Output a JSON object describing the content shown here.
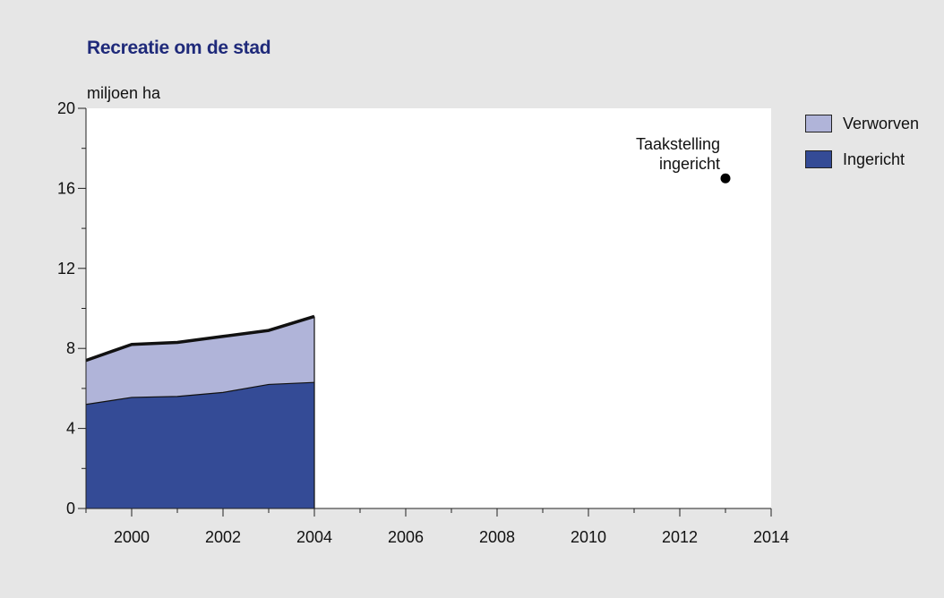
{
  "chart_data": {
    "type": "area",
    "title": "Recreatie om de stad",
    "ylabel": "miljoen ha",
    "xlabel": "",
    "xlim": [
      1999,
      2014
    ],
    "ylim": [
      0,
      20
    ],
    "x_ticks": [
      2000,
      2002,
      2004,
      2006,
      2008,
      2010,
      2012,
      2014
    ],
    "y_ticks": [
      0,
      4,
      8,
      12,
      16,
      20
    ],
    "x": [
      1999,
      2000,
      2001,
      2002,
      2003,
      2004
    ],
    "stacked": true,
    "series": [
      {
        "name": "Ingericht",
        "color": "#344b96",
        "values": [
          5.2,
          5.55,
          5.6,
          5.8,
          6.2,
          6.3
        ]
      },
      {
        "name": "Verworven",
        "color": "#b0b4d9",
        "values": [
          2.2,
          2.65,
          2.7,
          2.8,
          2.7,
          3.3
        ]
      }
    ],
    "annotations": [
      {
        "lines": [
          "Taakstelling",
          "ingericht"
        ],
        "x": 2013,
        "y": 16.5
      }
    ],
    "legend_position": "right",
    "grid": false
  },
  "colors": {
    "background": "#e6e6e6",
    "plot_background": "#ffffff",
    "title": "#1f2a7a"
  }
}
